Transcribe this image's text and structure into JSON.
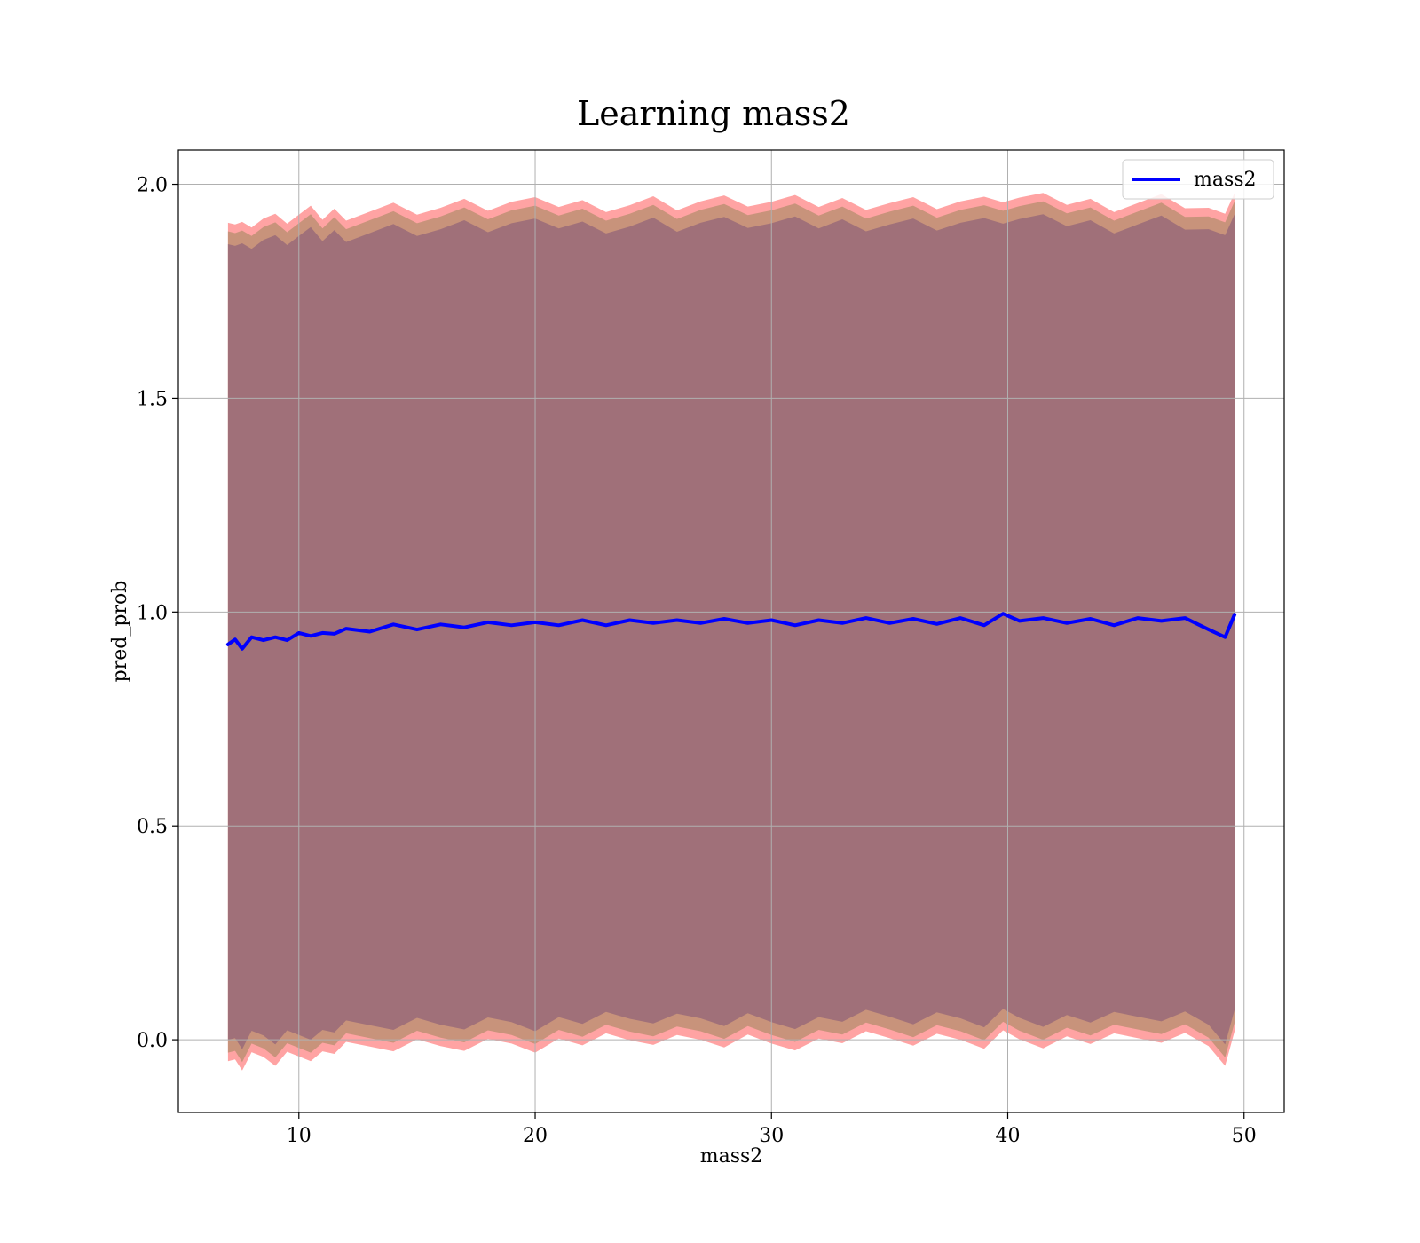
{
  "chart_data": {
    "type": "area",
    "title": "Learning mass2",
    "xlabel": "mass2",
    "ylabel": "pred_prob",
    "xlim": [
      4.9,
      51.7
    ],
    "ylim": [
      -0.17,
      2.08
    ],
    "xticks": [
      10,
      20,
      30,
      40,
      50
    ],
    "yticks": [
      0.0,
      0.5,
      1.0,
      1.5,
      2.0
    ],
    "xtick_labels": [
      "10",
      "20",
      "30",
      "40",
      "50"
    ],
    "ytick_labels": [
      "0.0",
      "0.5",
      "1.0",
      "1.5",
      "2.0"
    ],
    "grid": true,
    "legend": {
      "position": "top-right",
      "entries": [
        "mass2"
      ]
    },
    "colors": {
      "line": "#0000ff",
      "band_outer": "#ff9999",
      "band_mid": "#c8937b",
      "band_inner": "#a07079",
      "grid": "#b0b0b0"
    },
    "series": [
      {
        "name": "mass2",
        "x": [
          7.0,
          7.3,
          7.6,
          8.0,
          8.5,
          9.0,
          9.5,
          10.0,
          10.5,
          11.0,
          11.5,
          12.0,
          13.0,
          14.0,
          15.0,
          16.0,
          17.0,
          18.0,
          19.0,
          20.0,
          21.0,
          22.0,
          23.0,
          24.0,
          25.0,
          26.0,
          27.0,
          28.0,
          29.0,
          30.0,
          31.0,
          32.0,
          33.0,
          34.0,
          35.0,
          36.0,
          37.0,
          38.0,
          39.0,
          39.8,
          40.5,
          41.5,
          42.5,
          43.5,
          44.5,
          45.5,
          46.5,
          47.5,
          48.5,
          49.2,
          49.6
        ],
        "y": [
          0.93,
          0.93,
          0.92,
          0.935,
          0.94,
          0.935,
          0.94,
          0.945,
          0.95,
          0.945,
          0.955,
          0.955,
          0.96,
          0.965,
          0.965,
          0.965,
          0.97,
          0.97,
          0.975,
          0.97,
          0.975,
          0.975,
          0.975,
          0.975,
          0.98,
          0.975,
          0.98,
          0.978,
          0.98,
          0.975,
          0.975,
          0.975,
          0.98,
          0.98,
          0.98,
          0.978,
          0.978,
          0.98,
          0.975,
          0.99,
          0.985,
          0.98,
          0.98,
          0.978,
          0.975,
          0.98,
          0.985,
          0.98,
          0.965,
          0.935,
          1.0
        ],
        "std_inner": [
          0.93,
          0.93,
          0.93,
          0.93,
          0.93,
          0.93,
          0.93,
          0.93,
          0.93,
          0.93,
          0.93,
          0.93,
          0.93,
          0.93,
          0.93,
          0.93,
          0.93,
          0.93,
          0.93,
          0.93,
          0.93,
          0.93,
          0.93,
          0.93,
          0.93,
          0.93,
          0.93,
          0.93,
          0.93,
          0.93,
          0.93,
          0.93,
          0.93,
          0.93,
          0.93,
          0.93,
          0.93,
          0.93,
          0.93,
          0.93,
          0.93,
          0.93,
          0.93,
          0.93,
          0.93,
          0.93,
          0.93,
          0.93,
          0.93,
          0.93,
          0.93
        ],
        "std_mid": [
          0.96,
          0.96,
          0.96,
          0.96,
          0.96,
          0.96,
          0.96,
          0.96,
          0.96,
          0.96,
          0.96,
          0.96,
          0.96,
          0.96,
          0.96,
          0.96,
          0.96,
          0.96,
          0.96,
          0.96,
          0.96,
          0.96,
          0.96,
          0.96,
          0.96,
          0.96,
          0.96,
          0.96,
          0.96,
          0.96,
          0.96,
          0.96,
          0.96,
          0.96,
          0.96,
          0.96,
          0.96,
          0.96,
          0.96,
          0.96,
          0.96,
          0.96,
          0.96,
          0.96,
          0.96,
          0.96,
          0.96,
          0.96,
          0.96,
          0.96,
          0.96
        ],
        "std_outer": [
          0.98,
          0.98,
          0.98,
          0.98,
          0.98,
          0.98,
          0.98,
          0.98,
          0.98,
          0.98,
          0.98,
          0.98,
          0.98,
          0.98,
          0.98,
          0.98,
          0.98,
          0.98,
          0.98,
          0.98,
          0.98,
          0.98,
          0.98,
          0.98,
          0.98,
          0.98,
          0.98,
          0.98,
          0.98,
          0.98,
          0.98,
          0.98,
          0.98,
          0.98,
          0.98,
          0.98,
          0.98,
          0.98,
          0.98,
          0.98,
          0.98,
          0.98,
          0.98,
          0.98,
          0.98,
          0.98,
          0.98,
          0.98,
          0.98,
          0.98,
          0.98
        ]
      }
    ]
  }
}
